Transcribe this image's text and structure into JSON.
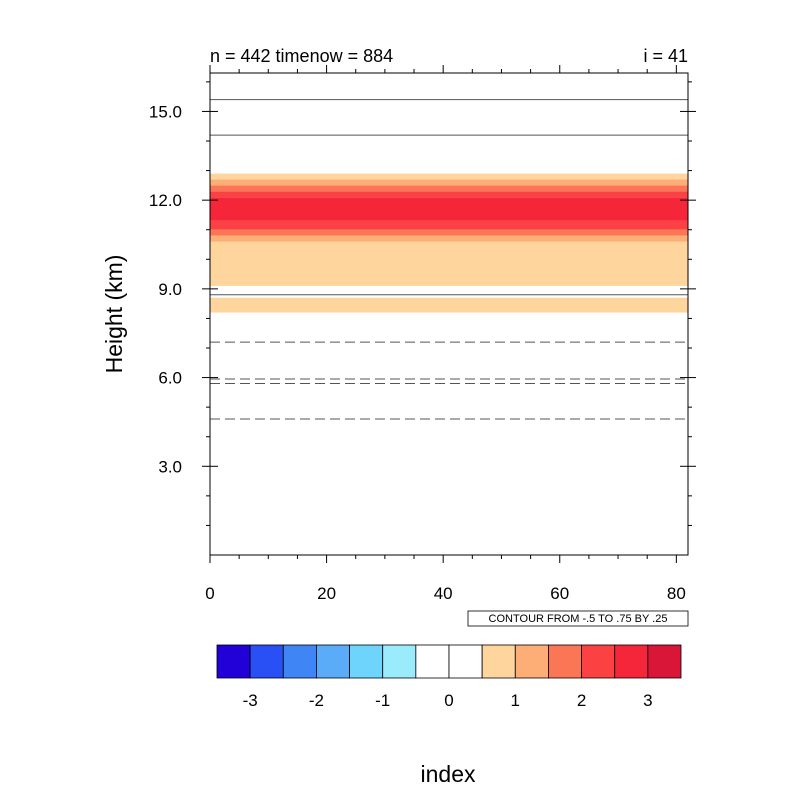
{
  "chart_data": {
    "type": "heatmap",
    "title_left": "n = 442 timenow = 884",
    "title_right": "i = 41",
    "xlabel": "index",
    "ylabel": "Height (km)",
    "xlim": [
      0,
      82
    ],
    "ylim": [
      0,
      16.3
    ],
    "xticks": [
      0,
      20,
      40,
      60,
      80
    ],
    "xtick_labels": [
      "0",
      "20",
      "40",
      "60",
      "80"
    ],
    "yticks": [
      3,
      6,
      9,
      12,
      15
    ],
    "ytick_labels": [
      "3.0",
      "6.0",
      "9.0",
      "12.0",
      "15.0"
    ],
    "bands": [
      {
        "y0": 8.2,
        "y1": 8.7,
        "level": 1
      },
      {
        "y0": 9.1,
        "y1": 10.6,
        "level": 1
      },
      {
        "y0": 10.6,
        "y1": 10.8,
        "level": 2
      },
      {
        "y0": 10.8,
        "y1": 11.0,
        "level": 3
      },
      {
        "y0": 11.0,
        "y1": 11.3,
        "level": 4
      },
      {
        "y0": 11.3,
        "y1": 12.1,
        "level": 5
      },
      {
        "y0": 12.1,
        "y1": 12.3,
        "level": 4
      },
      {
        "y0": 12.3,
        "y1": 12.5,
        "level": 3
      },
      {
        "y0": 12.5,
        "y1": 12.7,
        "level": 2
      },
      {
        "y0": 12.7,
        "y1": 12.9,
        "level": 1
      }
    ],
    "contour_lines": [
      {
        "y": 4.6,
        "dashed": true
      },
      {
        "y": 5.8,
        "dashed": true
      },
      {
        "y": 5.95,
        "dashed": true
      },
      {
        "y": 7.2,
        "dashed": true
      },
      {
        "y": 8.8,
        "dashed": false
      },
      {
        "y": 14.2,
        "dashed": false
      },
      {
        "y": 15.4,
        "dashed": false
      }
    ],
    "contour_info": "CONTOUR FROM -.5 TO .75 BY .25",
    "colorbar": {
      "colors": [
        "#2200d8",
        "#2950f5",
        "#3f85f5",
        "#5aacf8",
        "#6ed4fb",
        "#9aebfc",
        "#ffffff",
        "#ffffff",
        "#fdd59d",
        "#fdad76",
        "#fb7654",
        "#fb4141",
        "#f5253a",
        "#d91638"
      ],
      "labels": [
        "-3",
        "-2",
        "-1",
        "0",
        "1",
        "2",
        "3"
      ]
    },
    "level_colors": [
      "#ffffff",
      "#fdd59d",
      "#fdad76",
      "#fb7654",
      "#fb4141",
      "#f5253a"
    ]
  }
}
